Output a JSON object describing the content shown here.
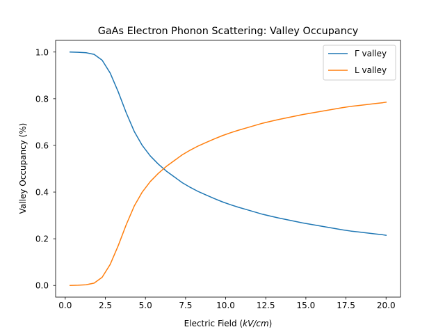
{
  "chart_data": {
    "type": "line",
    "title": "GaAs Electron Phonon Scattering: Valley Occupancy",
    "xlabel_prefix": "Electric Field (",
    "xlabel_unit": "kV/cm",
    "xlabel_suffix": ")",
    "ylabel": "Valley Occupancy (%)",
    "xlim": [
      -0.6,
      20.9
    ],
    "ylim": [
      -0.05,
      1.05
    ],
    "xticks": [
      0.0,
      2.5,
      5.0,
      7.5,
      10.0,
      12.5,
      15.0,
      17.5,
      20.0
    ],
    "xtick_labels": [
      "0.0",
      "2.5",
      "5.0",
      "7.5",
      "10.0",
      "12.5",
      "15.0",
      "17.5",
      "20.0"
    ],
    "yticks": [
      0.0,
      0.2,
      0.4,
      0.6,
      0.8,
      1.0
    ],
    "ytick_labels": [
      "0.0",
      "0.2",
      "0.4",
      "0.6",
      "0.8",
      "1.0"
    ],
    "grid": false,
    "legend_position": "top-right",
    "x": [
      0.3,
      0.8,
      1.3,
      1.8,
      2.3,
      2.8,
      3.3,
      3.8,
      4.3,
      4.8,
      5.3,
      5.8,
      6.3,
      6.8,
      7.3,
      7.8,
      8.3,
      8.8,
      9.3,
      9.8,
      10.3,
      10.8,
      11.3,
      11.8,
      12.3,
      12.8,
      13.3,
      13.8,
      14.3,
      14.8,
      15.3,
      15.8,
      16.3,
      16.8,
      17.3,
      17.8,
      18.3,
      18.8,
      19.3,
      19.8,
      20.0
    ],
    "series": [
      {
        "name": "Γ valley",
        "color": "#1f77b4",
        "values": [
          1.0,
          0.999,
          0.997,
          0.99,
          0.965,
          0.91,
          0.83,
          0.74,
          0.66,
          0.6,
          0.555,
          0.52,
          0.49,
          0.465,
          0.44,
          0.42,
          0.402,
          0.387,
          0.372,
          0.358,
          0.346,
          0.335,
          0.325,
          0.315,
          0.305,
          0.297,
          0.289,
          0.282,
          0.275,
          0.268,
          0.262,
          0.256,
          0.25,
          0.244,
          0.238,
          0.233,
          0.229,
          0.225,
          0.221,
          0.217,
          0.215
        ]
      },
      {
        "name": "L valley",
        "color": "#ff7f0e",
        "values": [
          0.0,
          0.001,
          0.003,
          0.01,
          0.035,
          0.09,
          0.17,
          0.26,
          0.34,
          0.4,
          0.445,
          0.48,
          0.51,
          0.535,
          0.56,
          0.58,
          0.598,
          0.613,
          0.628,
          0.642,
          0.654,
          0.665,
          0.675,
          0.685,
          0.695,
          0.703,
          0.711,
          0.718,
          0.725,
          0.732,
          0.738,
          0.744,
          0.75,
          0.756,
          0.762,
          0.767,
          0.771,
          0.775,
          0.779,
          0.783,
          0.785
        ]
      }
    ]
  }
}
